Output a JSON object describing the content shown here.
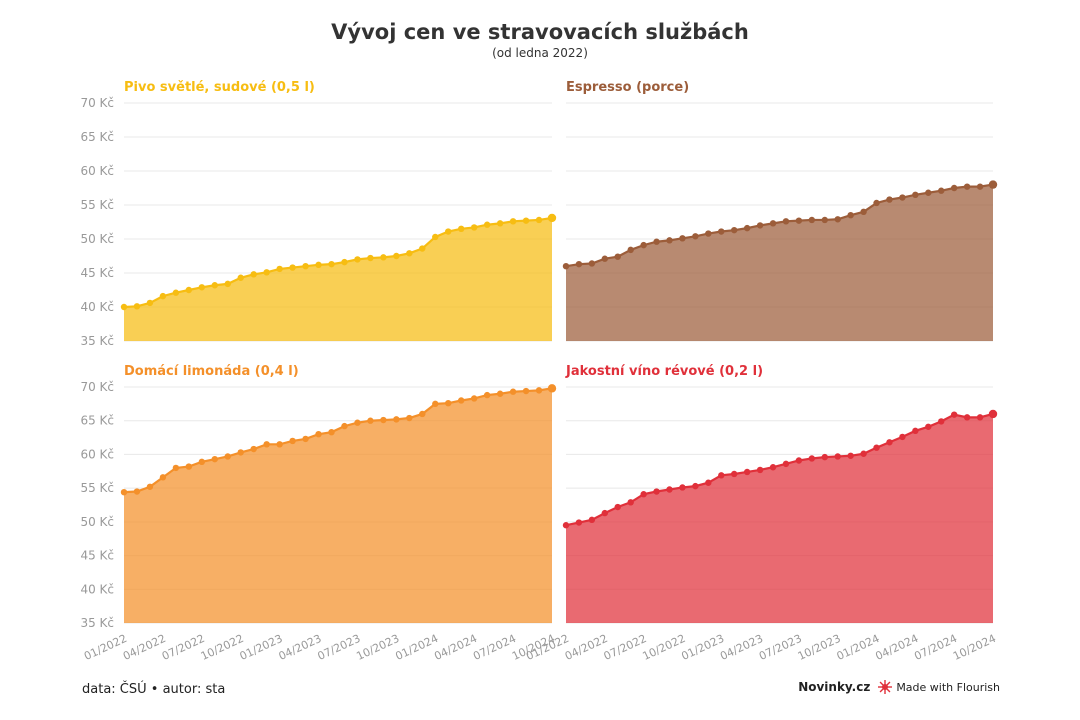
{
  "header": {
    "title": "Vývoj cen ve stravovacích službách",
    "subtitle": "(od ledna 2022)"
  },
  "footer": {
    "source": "data: ČSÚ • autor: sta",
    "brand": "Novinky.cz",
    "made_with": "Made with Flourish"
  },
  "colors": {
    "beer": "#f7bd12",
    "espresso": "#9c5d3a",
    "lemonade": "#f4902a",
    "wine": "#e0303a"
  },
  "chart_data": [
    {
      "type": "area",
      "title": "Pivo světlé, sudové (0,5 l)",
      "color": "#f7bd12",
      "ylim": [
        35,
        70
      ],
      "yticks": [
        "35 Kč",
        "40 Kč",
        "45 Kč",
        "50 Kč",
        "55 Kč",
        "60 Kč",
        "65 Kč",
        "70 Kč"
      ],
      "xticks": [
        "01/2022",
        "04/2022",
        "07/2022",
        "10/2022",
        "01/2023",
        "04/2023",
        "07/2023",
        "10/2023",
        "01/2024",
        "04/2024",
        "07/2024",
        "10/2024"
      ],
      "x_start": "01/2022",
      "x_end": "10/2024",
      "values": [
        40.0,
        40.1,
        40.6,
        41.6,
        42.1,
        42.5,
        42.9,
        43.2,
        43.4,
        44.3,
        44.8,
        45.1,
        45.6,
        45.8,
        46.0,
        46.2,
        46.3,
        46.6,
        47.0,
        47.2,
        47.3,
        47.5,
        47.9,
        48.6,
        50.3,
        51.1,
        51.5,
        51.7,
        52.1,
        52.3,
        52.6,
        52.7,
        52.8,
        53.1
      ]
    },
    {
      "type": "area",
      "title": "Espresso (porce)",
      "color": "#9c5d3a",
      "ylim": [
        35,
        70
      ],
      "yticks": [
        "35 Kč",
        "40 Kč",
        "45 Kč",
        "50 Kč",
        "55 Kč",
        "60 Kč",
        "65 Kč",
        "70 Kč"
      ],
      "xticks": [
        "01/2022",
        "04/2022",
        "07/2022",
        "10/2022",
        "01/2023",
        "04/2023",
        "07/2023",
        "10/2023",
        "01/2024",
        "04/2024",
        "07/2024",
        "10/2024"
      ],
      "x_start": "01/2022",
      "x_end": "10/2024",
      "values": [
        46.0,
        46.3,
        46.4,
        47.1,
        47.4,
        48.4,
        49.1,
        49.6,
        49.8,
        50.1,
        50.4,
        50.8,
        51.1,
        51.3,
        51.6,
        52.0,
        52.3,
        52.6,
        52.7,
        52.8,
        52.8,
        52.9,
        53.5,
        54.0,
        55.3,
        55.8,
        56.1,
        56.5,
        56.8,
        57.1,
        57.5,
        57.7,
        57.7,
        58.0
      ]
    },
    {
      "type": "area",
      "title": "Domácí limonáda (0,4 l)",
      "color": "#f4902a",
      "ylim": [
        35,
        70
      ],
      "yticks": [
        "35 Kč",
        "40 Kč",
        "45 Kč",
        "50 Kč",
        "55 Kč",
        "60 Kč",
        "65 Kč",
        "70 Kč"
      ],
      "xticks": [
        "01/2022",
        "04/2022",
        "07/2022",
        "10/2022",
        "01/2023",
        "04/2023",
        "07/2023",
        "10/2023",
        "01/2024",
        "04/2024",
        "07/2024",
        "10/2024"
      ],
      "x_start": "01/2022",
      "x_end": "10/2024",
      "values": [
        54.4,
        54.5,
        55.2,
        56.6,
        58.0,
        58.2,
        58.9,
        59.3,
        59.7,
        60.3,
        60.8,
        61.5,
        61.5,
        62.0,
        62.3,
        63.0,
        63.3,
        64.2,
        64.7,
        65.0,
        65.1,
        65.2,
        65.4,
        66.0,
        67.5,
        67.6,
        68.0,
        68.3,
        68.8,
        69.0,
        69.3,
        69.4,
        69.5,
        69.8
      ]
    },
    {
      "type": "area",
      "title": "Jakostní víno révové (0,2 l)",
      "color": "#e0303a",
      "ylim": [
        35,
        70
      ],
      "yticks": [
        "35 Kč",
        "40 Kč",
        "45 Kč",
        "50 Kč",
        "55 Kč",
        "60 Kč",
        "65 Kč",
        "70 Kč"
      ],
      "xticks": [
        "01/2022",
        "04/2022",
        "07/2022",
        "10/2022",
        "01/2023",
        "04/2023",
        "07/2023",
        "10/2023",
        "01/2024",
        "04/2024",
        "07/2024",
        "10/2024"
      ],
      "x_start": "01/2022",
      "x_end": "10/2024",
      "values": [
        49.5,
        49.9,
        50.3,
        51.3,
        52.2,
        52.9,
        54.1,
        54.5,
        54.8,
        55.1,
        55.3,
        55.8,
        56.9,
        57.1,
        57.4,
        57.7,
        58.1,
        58.6,
        59.1,
        59.4,
        59.6,
        59.7,
        59.8,
        60.1,
        61.0,
        61.8,
        62.6,
        63.5,
        64.1,
        64.9,
        65.9,
        65.5,
        65.5,
        66.0
      ]
    }
  ]
}
